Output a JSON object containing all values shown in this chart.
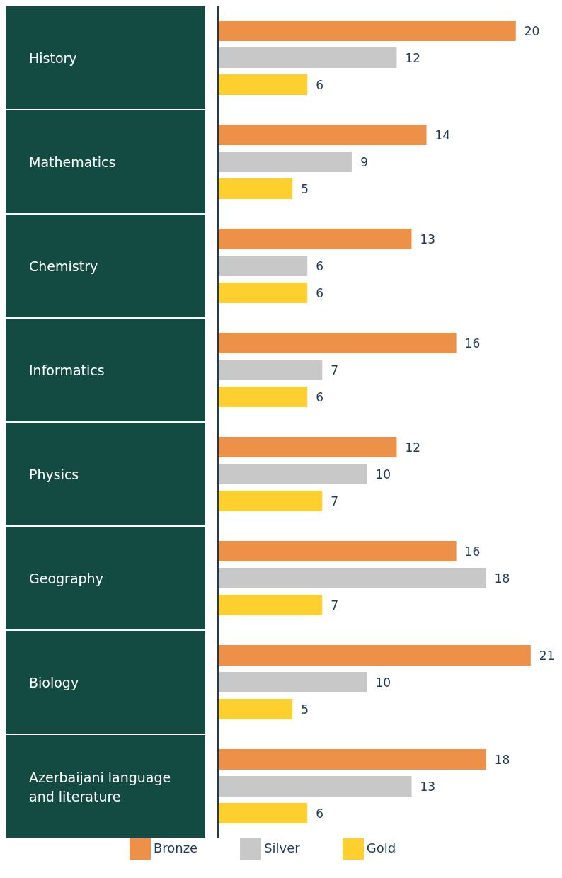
{
  "chart_data": {
    "type": "bar",
    "orientation": "horizontal",
    "categories": [
      "History",
      "Mathematics",
      "Chemistry",
      "Informatics",
      "Physics",
      "Geography",
      "Biology",
      "Azerbaijani language and literature"
    ],
    "series": [
      {
        "name": "Bronze",
        "color": "#ee9148",
        "values": [
          20,
          14,
          13,
          16,
          12,
          16,
          21,
          18
        ]
      },
      {
        "name": "Silver",
        "color": "#c8c8c9",
        "values": [
          12,
          9,
          6,
          7,
          10,
          18,
          10,
          13
        ]
      },
      {
        "name": "Gold",
        "color": "#fdd030",
        "values": [
          6,
          5,
          6,
          6,
          7,
          7,
          5,
          6
        ]
      }
    ],
    "data_labels": true,
    "legend": "bottom",
    "grid": false
  }
}
